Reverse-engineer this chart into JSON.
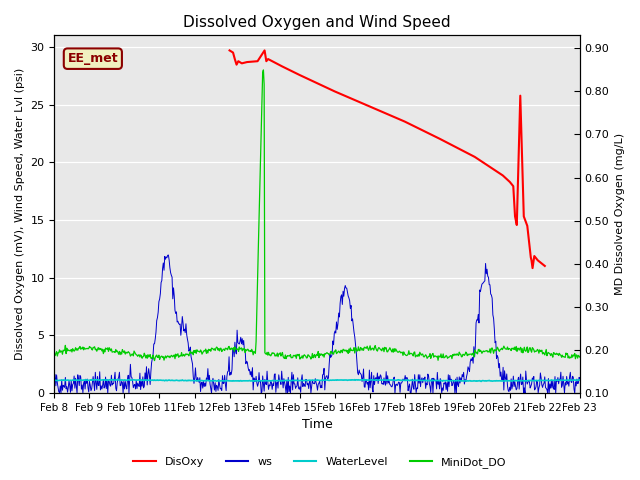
{
  "title": "Dissolved Oxygen and Wind Speed",
  "xlabel": "Time",
  "ylabel_left": "Dissolved Oxygen (mV), Wind Speed, Water Lvl (psi)",
  "ylabel_right": "MD Dissolved Oxygen (mg/L)",
  "ylim_left": [
    0,
    31
  ],
  "ylim_right": [
    0.1,
    0.93
  ],
  "xtick_labels": [
    "Feb 8",
    "Feb 9",
    "Feb 10",
    "Feb 11",
    "Feb 12",
    "Feb 13",
    "Feb 14",
    "Feb 15",
    "Feb 16",
    "Feb 17",
    "Feb 18",
    "Feb 19",
    "Feb 20",
    "Feb 21",
    "Feb 22",
    "Feb 23"
  ],
  "yticks_left": [
    0,
    5,
    10,
    15,
    20,
    25,
    30
  ],
  "yticks_right": [
    0.1,
    0.2,
    0.3,
    0.4,
    0.5,
    0.6,
    0.7,
    0.8,
    0.9
  ],
  "bg_color": "#e8e8e8",
  "annotation_label": "EE_met",
  "annotation_color": "#8b0000",
  "annotation_bg": "#f0f0c0",
  "colors": {
    "DisOxy": "#ff0000",
    "ws": "#0000cc",
    "WaterLevel": "#00cccc",
    "MiniDot_DO": "#00cc00"
  },
  "disoxy_t": [
    5.0,
    5.1,
    5.15,
    5.2,
    5.25,
    5.35,
    5.5,
    5.8,
    6.0,
    6.05,
    6.1,
    6.5,
    7.0,
    8.0,
    9.0,
    10.0,
    11.0,
    12.0,
    12.8,
    13.0,
    13.1,
    13.15,
    13.2,
    13.3,
    13.4,
    13.5,
    13.6,
    13.62,
    13.65,
    13.7,
    13.8,
    14.0
  ],
  "disoxy_v": [
    0.895,
    0.89,
    0.875,
    0.862,
    0.87,
    0.865,
    0.868,
    0.87,
    0.895,
    0.87,
    0.875,
    0.858,
    0.838,
    0.8,
    0.765,
    0.73,
    0.69,
    0.648,
    0.605,
    0.59,
    0.58,
    0.51,
    0.49,
    0.79,
    0.51,
    0.488,
    0.415,
    0.408,
    0.39,
    0.418,
    0.408,
    0.395
  ]
}
